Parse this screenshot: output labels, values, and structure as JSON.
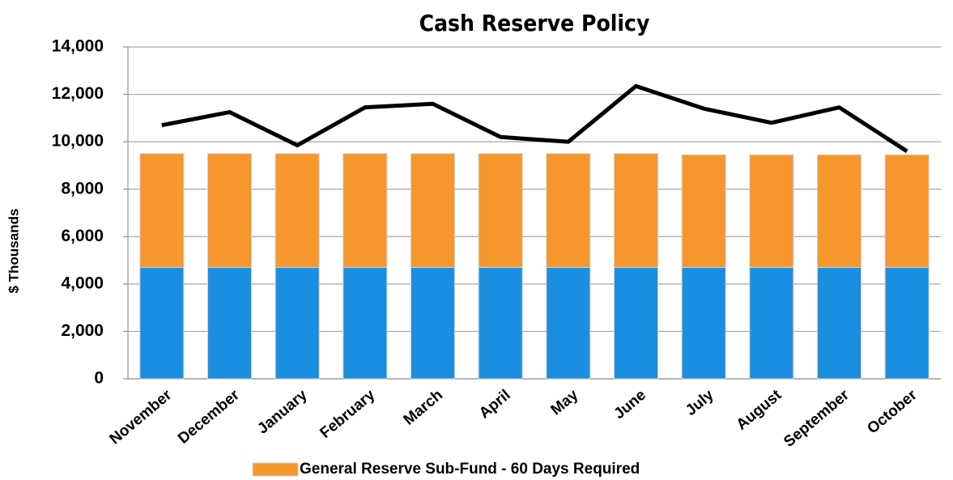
{
  "chart_data": {
    "type": "bar",
    "stacked": true,
    "title": "Cash Reserve Policy",
    "y_label": "$ Thousands",
    "categories": [
      "November",
      "December",
      "January",
      "February",
      "March",
      "April",
      "May",
      "June",
      "July",
      "August",
      "September",
      "October"
    ],
    "series": [
      {
        "color": "#1a8ee0",
        "values": [
          4700,
          4700,
          4700,
          4700,
          4700,
          4700,
          4700,
          4700,
          4700,
          4700,
          4700,
          4700
        ]
      },
      {
        "name": "General Reserve Sub-Fund - 60 Days Required",
        "color": "#f7962d",
        "values": [
          4800,
          4800,
          4800,
          4800,
          4800,
          4800,
          4800,
          4800,
          4750,
          4750,
          4750,
          4750
        ]
      },
      {
        "type": "line",
        "color": "#000000",
        "values": [
          10700,
          11250,
          9850,
          11450,
          11600,
          10200,
          10000,
          12350,
          11400,
          10800,
          11450,
          9600
        ]
      }
    ],
    "ylim": [
      0,
      14000
    ],
    "yticks": [
      0,
      {
        "value": 2000,
        "label": "2,000"
      },
      {
        "value": 4000,
        "label": "4,000"
      },
      {
        "value": 6000,
        "label": "6,000"
      },
      {
        "value": 8000,
        "label": "8,000"
      },
      {
        "value": 10000,
        "label": "10,000"
      },
      {
        "value": 12000,
        "label": "12,000"
      },
      {
        "value": 14000,
        "label": "14,000"
      }
    ],
    "grid": true
  }
}
